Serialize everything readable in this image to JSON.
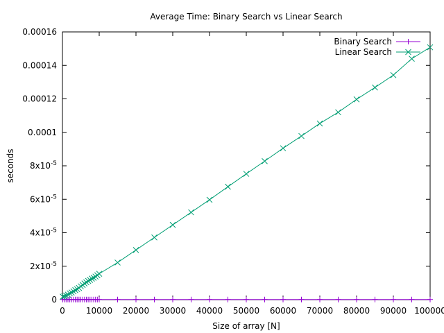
{
  "chart_data": {
    "type": "line",
    "title": "Average Time: Binary Search vs Linear Search",
    "xlabel": "Size of array [N]",
    "ylabel": "seconds",
    "xlim": [
      0,
      100000
    ],
    "ylim": [
      0,
      0.00016
    ],
    "grid": false,
    "legend_position": "top-right",
    "x_ticks": [
      {
        "value": 0,
        "label": "0"
      },
      {
        "value": 10000,
        "label": "10000"
      },
      {
        "value": 20000,
        "label": "20000"
      },
      {
        "value": 30000,
        "label": "30000"
      },
      {
        "value": 40000,
        "label": "40000"
      },
      {
        "value": 50000,
        "label": "50000"
      },
      {
        "value": 60000,
        "label": "60000"
      },
      {
        "value": 70000,
        "label": "70000"
      },
      {
        "value": 80000,
        "label": "80000"
      },
      {
        "value": 90000,
        "label": "90000"
      },
      {
        "value": 100000,
        "label": "100000"
      }
    ],
    "y_ticks": [
      {
        "value": 0,
        "mant": "0",
        "exp": ""
      },
      {
        "value": 2e-05,
        "mant": "2x10",
        "exp": "-5"
      },
      {
        "value": 4e-05,
        "mant": "4x10",
        "exp": "-5"
      },
      {
        "value": 6e-05,
        "mant": "6x10",
        "exp": "-5"
      },
      {
        "value": 8e-05,
        "mant": "8x10",
        "exp": "-5"
      },
      {
        "value": 0.0001,
        "mant": "0.0001",
        "exp": ""
      },
      {
        "value": 0.00012,
        "mant": "0.00012",
        "exp": ""
      },
      {
        "value": 0.00014,
        "mant": "0.00014",
        "exp": ""
      },
      {
        "value": 0.00016,
        "mant": "0.00016",
        "exp": ""
      }
    ],
    "series": [
      {
        "name": "Binary Search",
        "color": "#9400d3",
        "marker": "plus",
        "x": [
          100,
          500,
          1000,
          1500,
          2000,
          2500,
          3000,
          3500,
          4000,
          4500,
          5000,
          5500,
          6000,
          6500,
          7000,
          7500,
          8000,
          8500,
          9000,
          9500,
          10000,
          15000,
          20000,
          25000,
          30000,
          35000,
          40000,
          45000,
          50000,
          55000,
          60000,
          65000,
          70000,
          75000,
          80000,
          85000,
          90000,
          95000,
          100000
        ],
        "y": [
          1e-07,
          1e-07,
          1e-07,
          1e-07,
          1e-07,
          1e-07,
          1e-07,
          1e-07,
          1e-07,
          1e-07,
          1e-07,
          1e-07,
          1e-07,
          1e-07,
          1e-07,
          1e-07,
          1e-07,
          1e-07,
          1e-07,
          1e-07,
          1e-07,
          1e-07,
          1e-07,
          1e-07,
          1e-07,
          1e-07,
          1e-07,
          1e-07,
          1e-07,
          1e-07,
          1e-07,
          1e-07,
          1e-07,
          1e-07,
          1e-07,
          1e-07,
          1e-07,
          1e-07,
          1e-07
        ]
      },
      {
        "name": "Linear Search",
        "color": "#009e73",
        "marker": "cross",
        "x": [
          100,
          500,
          1000,
          1500,
          2000,
          2500,
          3000,
          3500,
          4000,
          4500,
          5000,
          5500,
          6000,
          6500,
          7000,
          7500,
          8000,
          8500,
          9000,
          9500,
          10000,
          15000,
          20000,
          25000,
          30000,
          35000,
          40000,
          45000,
          50000,
          55000,
          60000,
          65000,
          70000,
          75000,
          80000,
          85000,
          90000,
          95000,
          100000
        ],
        "y": [
          1.8e-06,
          2.1e-06,
          2.5e-06,
          3e-06,
          3.8e-06,
          4.3e-06,
          5e-06,
          5.7e-06,
          6.3e-06,
          7e-06,
          8e-06,
          8.8e-06,
          9.7e-06,
          1.04e-05,
          1.12e-05,
          1.18e-05,
          1.26e-05,
          1.31e-05,
          1.38e-05,
          1.46e-05,
          1.55e-05,
          2.22e-05,
          2.97e-05,
          3.72e-05,
          4.47e-05,
          5.22e-05,
          5.97e-05,
          6.75e-05,
          7.52e-05,
          8.28e-05,
          9.05e-05,
          9.78e-05,
          0.0001053,
          0.000112,
          0.0001197,
          0.0001268,
          0.0001342,
          0.000144,
          0.0001508
        ]
      }
    ]
  }
}
